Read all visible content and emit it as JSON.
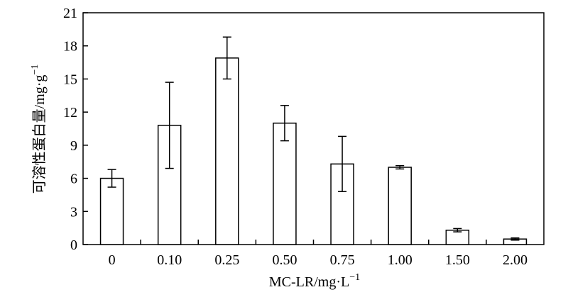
{
  "chart_data": {
    "type": "bar",
    "categories": [
      "0",
      "0.10",
      "0.25",
      "0.50",
      "0.75",
      "1.00",
      "1.50",
      "2.00"
    ],
    "values": [
      6.0,
      10.8,
      16.9,
      11.0,
      7.3,
      7.0,
      1.3,
      0.5
    ],
    "errors": [
      0.8,
      3.9,
      1.9,
      1.6,
      2.5,
      0.15,
      0.15,
      0.1
    ],
    "xlabel": "MC-LR/mg·L",
    "xlabel_sup": "−1",
    "ylabel": "可溶性蛋白量/mg·g",
    "ylabel_sup": "−1",
    "ylim": [
      0,
      21
    ],
    "yticks": [
      "0",
      "3",
      "6",
      "9",
      "12",
      "15",
      "18",
      "21"
    ],
    "bar_fill": "#ffffff",
    "bar_stroke": "#000000",
    "grid": false
  }
}
